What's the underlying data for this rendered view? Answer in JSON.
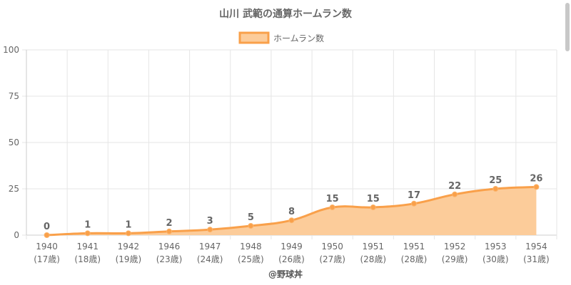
{
  "chart_data": {
    "type": "area",
    "title": "山川 武範の通算ホームラン数",
    "legend": {
      "label": "ホームラン数",
      "position": "top"
    },
    "categories": [
      [
        "1940",
        "(17歳)"
      ],
      [
        "1941",
        "(18歳)"
      ],
      [
        "1942",
        "(19歳)"
      ],
      [
        "1946",
        "(23歳)"
      ],
      [
        "1947",
        "(24歳)"
      ],
      [
        "1948",
        "(25歳)"
      ],
      [
        "1949",
        "(26歳)"
      ],
      [
        "1950",
        "(27歳)"
      ],
      [
        "1951",
        "(28歳)"
      ],
      [
        "1951",
        "(28歳)"
      ],
      [
        "1952",
        "(29歳)"
      ],
      [
        "1953",
        "(30歳)"
      ],
      [
        "1954",
        "(31歳)"
      ]
    ],
    "series": [
      {
        "name": "ホームラン数",
        "values": [
          0,
          1,
          1,
          2,
          3,
          5,
          8,
          15,
          15,
          17,
          22,
          25,
          26
        ]
      }
    ],
    "ylim": [
      0,
      100
    ],
    "yticks": [
      0,
      25,
      50,
      75,
      100
    ],
    "grid": true,
    "colors": {
      "line": "#f9a04a",
      "fill": "#fccc9a",
      "grid": "#e6e6e6",
      "text": "#666666"
    }
  },
  "footer": {
    "credit": "@野球丼"
  }
}
